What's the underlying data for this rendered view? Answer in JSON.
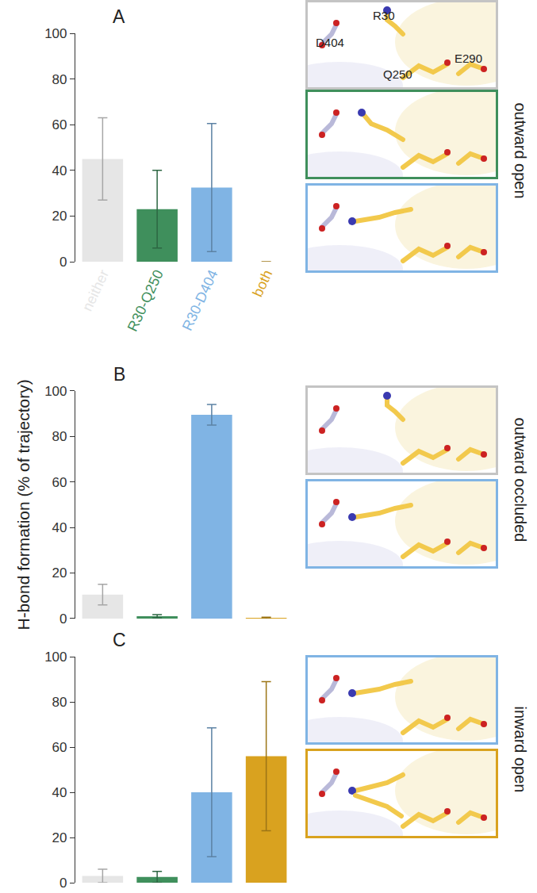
{
  "chart_data": [
    {
      "type": "bar",
      "title": "A",
      "annotations": [
        "outward open"
      ],
      "categories": [
        "neither",
        "R30-Q250",
        "R30-D404",
        "both"
      ],
      "values": [
        45,
        23,
        32.5,
        0
      ],
      "errors": [
        18,
        17,
        28,
        0
      ],
      "colors": [
        "#e6e6e6",
        "#3f8f5c",
        "#80b4e4",
        "#d9a21f"
      ],
      "ylim": [
        0,
        100
      ],
      "yticks": [
        0,
        20,
        40,
        60,
        80,
        100
      ]
    },
    {
      "type": "bar",
      "title": "B",
      "annotations": [
        "outward occluded"
      ],
      "y_label": "H-bond formation (% of trajectory)",
      "categories": [
        "neither",
        "R30-Q250",
        "R30-D404",
        "both"
      ],
      "values": [
        10.5,
        1,
        89.5,
        0.3
      ],
      "errors": [
        4.5,
        0.7,
        4.5,
        0.3
      ],
      "colors": [
        "#e6e6e6",
        "#3f8f5c",
        "#80b4e4",
        "#d9a21f"
      ],
      "ylim": [
        0,
        100
      ],
      "yticks": [
        0,
        20,
        40,
        60,
        80,
        100
      ],
      "tick_labels": "y"
    },
    {
      "type": "bar",
      "title": "C",
      "annotations": [
        "inward open"
      ],
      "categories": [
        "neither",
        "R30-Q250",
        "R30-D404",
        "both"
      ],
      "values": [
        3,
        2.5,
        40,
        56
      ],
      "errors": [
        3,
        2.5,
        28.5,
        33
      ],
      "colors": [
        "#e6e6e6",
        "#3f8f5c",
        "#80b4e4",
        "#d9a21f"
      ],
      "ylim": [
        0,
        100
      ],
      "yticks": [
        0,
        20,
        40,
        60,
        80,
        100
      ],
      "tick_labels": "y"
    }
  ],
  "structures": [
    {
      "frames": [
        "neither",
        "R30-Q250",
        "R30-D404"
      ],
      "labels": [
        "R30",
        "D404",
        "E290",
        "Q250"
      ]
    },
    {
      "frames": [
        "neither",
        "R30-D404"
      ]
    },
    {
      "frames": [
        "R30-D404",
        "both"
      ]
    }
  ]
}
